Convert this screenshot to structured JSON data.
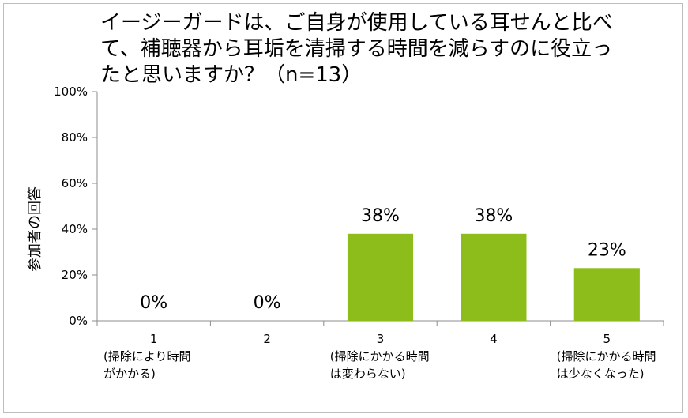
{
  "chart_data": {
    "type": "bar",
    "title_lines": [
      "イージーガードは、ご自身が使用している耳せんと比べ",
      "て、補聴器から耳垢を清掃する時間を減らすのに役立っ",
      "たと思いますか？（n=13）"
    ],
    "ylabel": "参加者の回答",
    "ylim": [
      0,
      100
    ],
    "yticks": [
      0,
      20,
      40,
      60,
      80,
      100
    ],
    "ytick_labels": [
      "0%",
      "20%",
      "40%",
      "60%",
      "80%",
      "100%"
    ],
    "categories": [
      [
        "1",
        "(掃除により時間",
        "がかかる)"
      ],
      [
        "2"
      ],
      [
        "3",
        "(掃除にかかる時間",
        "は変わらない)"
      ],
      [
        "4"
      ],
      [
        "5",
        "(掃除にかかる時間",
        "は少なくなった)"
      ]
    ],
    "values": [
      0,
      0,
      38,
      38,
      23
    ],
    "data_labels": [
      "0%",
      "0%",
      "38%",
      "38%",
      "23%"
    ],
    "bar_color": "#8cbd1a",
    "grid": false,
    "legend": "none"
  }
}
